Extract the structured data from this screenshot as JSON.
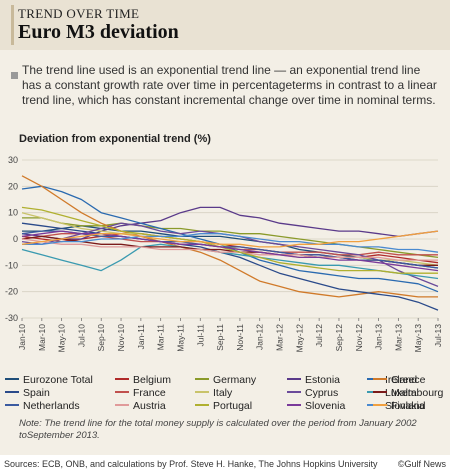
{
  "header": {
    "kicker": "TREND OVER TIME",
    "title": "Euro M3 deviation"
  },
  "note": "The trend line used is an exponential trend line — an exponential trend line has a constant growth rate over time in percentageterms in contrast to a linear trend line, which has constant incremental change over time in nominal terms.",
  "footnote": "Note: The trend line for the total money supply is calculated over the period from January 2002 toSeptember 2013.",
  "source": "Sources: ECB, ONB, and calculations by Prof. Steve H. Hanke, The Johns Hopkins University",
  "credit": "©Gulf News",
  "chart_data": {
    "type": "line",
    "title": "Deviation from exponential trend (%)",
    "ylim": [
      -30,
      30
    ],
    "yticks": [
      30,
      20,
      10,
      0,
      -10,
      -20,
      -30
    ],
    "grid": true,
    "legend": "bottom",
    "x": [
      "Jan-10",
      "Mar-10",
      "May-10",
      "Jul-10",
      "Sep-10",
      "Nov-10",
      "Jan-11",
      "Mar-11",
      "May-11",
      "Jul-11",
      "Sep-11",
      "Nov-11",
      "Jan-12",
      "Mar-12",
      "May-12",
      "Jul-12",
      "Sep-12",
      "Nov-12",
      "Jan-13",
      "Mar-13",
      "May-13",
      "Jul-13"
    ],
    "series": [
      {
        "name": "Eurozone Total",
        "color": "#1f4e79",
        "values": [
          3,
          3,
          4,
          5,
          4,
          3,
          3,
          2,
          1,
          1,
          1,
          0,
          -1,
          -2,
          -4,
          -5,
          -6,
          -7,
          -8,
          -9,
          -10,
          -11
        ]
      },
      {
        "name": "Belgium",
        "color": "#b02a2a",
        "values": [
          1,
          0,
          -1,
          0,
          1,
          2,
          2,
          1,
          0,
          -1,
          -2,
          -3,
          -4,
          -5,
          -6,
          -6,
          -7,
          -7,
          -6,
          -7,
          -8,
          -9
        ]
      },
      {
        "name": "Germany",
        "color": "#8a9a2a",
        "values": [
          8,
          8,
          6,
          5,
          5,
          6,
          5,
          4,
          4,
          3,
          3,
          2,
          2,
          1,
          0,
          -1,
          -2,
          -3,
          -4,
          -5,
          -6,
          -7
        ]
      },
      {
        "name": "Estonia",
        "color": "#5a3a8a",
        "values": [
          2,
          1,
          0,
          0,
          3,
          5,
          6,
          7,
          10,
          12,
          12,
          9,
          8,
          6,
          5,
          4,
          3,
          3,
          2,
          1,
          2,
          3
        ]
      },
      {
        "name": "Ireland",
        "color": "#2a6ab0",
        "values": [
          19,
          20,
          18,
          15,
          10,
          8,
          6,
          4,
          2,
          0,
          -2,
          -5,
          -8,
          -10,
          -12,
          -13,
          -14,
          -15,
          -15,
          -16,
          -17,
          -20
        ]
      },
      {
        "name": "Greece",
        "color": "#d07a2a",
        "values": [
          24,
          20,
          15,
          10,
          6,
          3,
          1,
          -1,
          -3,
          -5,
          -8,
          -12,
          -16,
          -18,
          -20,
          -21,
          -22,
          -21,
          -20,
          -21,
          -22,
          -22
        ]
      },
      {
        "name": "Spain",
        "color": "#2a4a8a",
        "values": [
          6,
          5,
          4,
          3,
          2,
          1,
          0,
          -1,
          -2,
          -3,
          -5,
          -7,
          -10,
          -13,
          -15,
          -17,
          -19,
          -20,
          -21,
          -22,
          -24,
          -27
        ]
      },
      {
        "name": "France",
        "color": "#c0504d",
        "values": [
          0,
          1,
          2,
          2,
          1,
          0,
          -1,
          -1,
          -2,
          -2,
          -3,
          -4,
          -4,
          -5,
          -5,
          -5,
          -6,
          -6,
          -5,
          -6,
          -6,
          -6
        ]
      },
      {
        "name": "Italy",
        "color": "#c9c36a",
        "values": [
          10,
          8,
          6,
          4,
          3,
          2,
          2,
          1,
          0,
          -1,
          -2,
          -4,
          -5,
          -6,
          -7,
          -7,
          -7,
          -7,
          -8,
          -8,
          -9,
          -10
        ]
      },
      {
        "name": "Cyprus",
        "color": "#6a4a9a",
        "values": [
          -1,
          -2,
          0,
          2,
          4,
          6,
          5,
          3,
          2,
          3,
          2,
          1,
          -1,
          -2,
          -3,
          -4,
          -5,
          -6,
          -8,
          -12,
          -15,
          -18
        ]
      },
      {
        "name": "Luxembourg",
        "color": "#3a9ab0",
        "values": [
          -4,
          -6,
          -8,
          -10,
          -12,
          -8,
          -3,
          -2,
          -3,
          -4,
          -5,
          -6,
          -7,
          -8,
          -9,
          -10,
          -10,
          -11,
          -12,
          -13,
          -14,
          -15
        ]
      },
      {
        "name": "Malta",
        "color": "#7a1a1a",
        "values": [
          0,
          1,
          0,
          -1,
          -2,
          -2,
          -3,
          -3,
          -3,
          -4,
          -4,
          -5,
          -5,
          -6,
          -6,
          -7,
          -7,
          -8,
          -8,
          -9,
          -10,
          -10
        ]
      },
      {
        "name": "Netherlands",
        "color": "#3a5aa0",
        "values": [
          2,
          3,
          3,
          2,
          1,
          1,
          0,
          -1,
          -1,
          -2,
          -3,
          -3,
          -4,
          -5,
          -6,
          -6,
          -7,
          -8,
          -8,
          -9,
          -10,
          -11
        ]
      },
      {
        "name": "Austria",
        "color": "#e09a9a",
        "values": [
          0,
          -1,
          -2,
          -2,
          -3,
          -3,
          -3,
          -4,
          -4,
          -4,
          -5,
          -5,
          -6,
          -6,
          -6,
          -7,
          -7,
          -7,
          -7,
          -8,
          -8,
          -8
        ]
      },
      {
        "name": "Portugal",
        "color": "#b0b030",
        "values": [
          12,
          11,
          9,
          7,
          5,
          3,
          2,
          1,
          0,
          -1,
          -3,
          -5,
          -7,
          -9,
          -10,
          -11,
          -12,
          -12,
          -12,
          -13,
          -13,
          -13
        ]
      },
      {
        "name": "Slovenia",
        "color": "#7a3a9a",
        "values": [
          1,
          2,
          3,
          2,
          2,
          1,
          0,
          -1,
          -2,
          -2,
          -3,
          -4,
          -5,
          -6,
          -7,
          -7,
          -8,
          -8,
          -9,
          -10,
          -11,
          -12
        ]
      },
      {
        "name": "Slovakia",
        "color": "#4a8ad0",
        "values": [
          -2,
          -2,
          -1,
          -1,
          0,
          0,
          1,
          1,
          1,
          2,
          2,
          1,
          0,
          -1,
          -1,
          -2,
          -2,
          -3,
          -3,
          -4,
          -4,
          -5
        ]
      },
      {
        "name": "Finland",
        "color": "#f0a040",
        "values": [
          -2,
          -1,
          0,
          1,
          2,
          2,
          1,
          0,
          -1,
          -1,
          -2,
          -2,
          -3,
          -3,
          -2,
          -2,
          -1,
          -1,
          0,
          1,
          2,
          3
        ]
      }
    ]
  }
}
